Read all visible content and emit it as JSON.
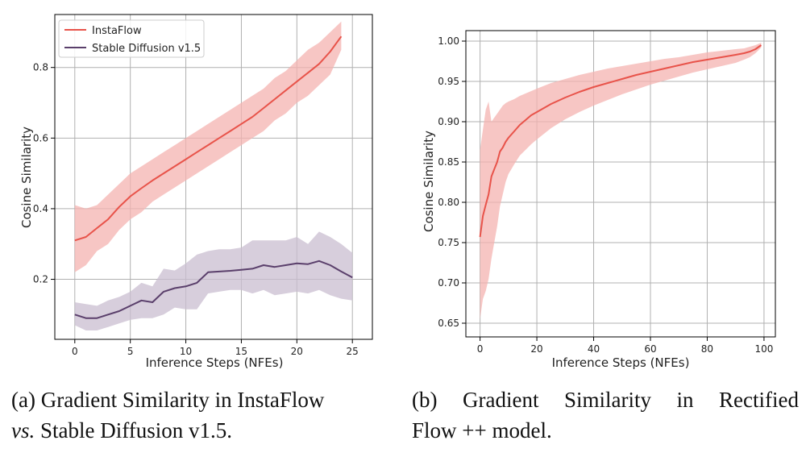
{
  "colors": {
    "instaflow": "#e8534a",
    "instaflow_band": "#f4b3b0",
    "sd": "#5a3f6b",
    "sd_band": "#c9bdd0",
    "grid": "#b0b0b0",
    "axis": "#000000"
  },
  "chart_data": [
    {
      "type": "line",
      "xlabel": "Inference Steps (NFEs)",
      "ylabel": "Cosine Similarity",
      "xlim": [
        -1.8,
        26.8
      ],
      "ylim": [
        0.03,
        0.95
      ],
      "xticks": [
        0,
        5,
        10,
        15,
        20,
        25
      ],
      "yticks": [
        0.2,
        0.4,
        0.6,
        0.8
      ],
      "ytick_labels": [
        "0.2",
        "0.4",
        "0.6",
        "0.8"
      ],
      "grid": true,
      "legend": "top-left",
      "series": [
        {
          "name": "InstaFlow",
          "color": "#e8534a",
          "x": [
            0,
            1,
            2,
            3,
            4,
            5,
            6,
            7,
            8,
            9,
            10,
            11,
            12,
            13,
            14,
            15,
            16,
            17,
            18,
            19,
            20,
            21,
            22,
            23,
            24
          ],
          "y": [
            0.31,
            0.32,
            0.345,
            0.37,
            0.405,
            0.435,
            0.458,
            0.48,
            0.5,
            0.52,
            0.54,
            0.56,
            0.58,
            0.6,
            0.62,
            0.64,
            0.66,
            0.685,
            0.71,
            0.735,
            0.76,
            0.785,
            0.81,
            0.845,
            0.888
          ],
          "lower": [
            0.22,
            0.24,
            0.28,
            0.3,
            0.34,
            0.37,
            0.39,
            0.42,
            0.44,
            0.46,
            0.48,
            0.5,
            0.52,
            0.54,
            0.56,
            0.58,
            0.6,
            0.62,
            0.65,
            0.67,
            0.7,
            0.72,
            0.75,
            0.78,
            0.85
          ],
          "upper": [
            0.41,
            0.4,
            0.41,
            0.44,
            0.47,
            0.5,
            0.52,
            0.54,
            0.56,
            0.58,
            0.6,
            0.62,
            0.64,
            0.66,
            0.68,
            0.7,
            0.72,
            0.74,
            0.77,
            0.79,
            0.82,
            0.85,
            0.87,
            0.9,
            0.93
          ]
        },
        {
          "name": "Stable Diffusion v1.5",
          "color": "#5a3f6b",
          "x": [
            0,
            1,
            2,
            3,
            4,
            5,
            6,
            7,
            8,
            9,
            10,
            11,
            12,
            13,
            14,
            15,
            16,
            17,
            18,
            19,
            20,
            21,
            22,
            23,
            24,
            25
          ],
          "y": [
            0.1,
            0.09,
            0.09,
            0.1,
            0.11,
            0.125,
            0.14,
            0.135,
            0.165,
            0.175,
            0.18,
            0.19,
            0.22,
            0.222,
            0.224,
            0.227,
            0.23,
            0.24,
            0.235,
            0.24,
            0.245,
            0.243,
            0.252,
            0.24,
            0.222,
            0.205
          ],
          "lower": [
            0.07,
            0.055,
            0.055,
            0.065,
            0.075,
            0.085,
            0.09,
            0.09,
            0.1,
            0.12,
            0.115,
            0.115,
            0.16,
            0.165,
            0.17,
            0.17,
            0.16,
            0.17,
            0.155,
            0.16,
            0.165,
            0.16,
            0.17,
            0.155,
            0.145,
            0.14
          ],
          "upper": [
            0.135,
            0.13,
            0.125,
            0.14,
            0.15,
            0.165,
            0.19,
            0.18,
            0.23,
            0.225,
            0.245,
            0.27,
            0.28,
            0.285,
            0.285,
            0.29,
            0.31,
            0.31,
            0.31,
            0.31,
            0.32,
            0.3,
            0.335,
            0.32,
            0.3,
            0.275
          ]
        }
      ]
    },
    {
      "type": "line",
      "xlabel": "Inference Steps (NFEs)",
      "ylabel": "Cosine Similarity",
      "xlim": [
        -5,
        104
      ],
      "ylim": [
        0.633,
        1.013
      ],
      "xticks": [
        0,
        20,
        40,
        60,
        80,
        100
      ],
      "yticks": [
        0.65,
        0.7,
        0.75,
        0.8,
        0.85,
        0.9,
        0.95,
        1.0
      ],
      "ytick_labels": [
        "0.65",
        "0.70",
        "0.75",
        "0.80",
        "0.85",
        "0.90",
        "0.95",
        "1.00"
      ],
      "grid": true,
      "series": [
        {
          "color": "#e8534a",
          "x": [
            0,
            1,
            2,
            3,
            4,
            5,
            6,
            7,
            8,
            9,
            10,
            12,
            14,
            16,
            18,
            20,
            25,
            30,
            35,
            40,
            45,
            50,
            55,
            60,
            65,
            70,
            75,
            80,
            85,
            90,
            93,
            95,
            97,
            99
          ],
          "y": [
            0.757,
            0.783,
            0.797,
            0.81,
            0.832,
            0.841,
            0.85,
            0.863,
            0.868,
            0.875,
            0.88,
            0.888,
            0.896,
            0.902,
            0.908,
            0.912,
            0.922,
            0.93,
            0.937,
            0.943,
            0.948,
            0.953,
            0.958,
            0.962,
            0.966,
            0.97,
            0.974,
            0.977,
            0.98,
            0.983,
            0.985,
            0.987,
            0.99,
            0.995
          ],
          "lower": [
            0.655,
            0.68,
            0.69,
            0.705,
            0.73,
            0.75,
            0.77,
            0.795,
            0.81,
            0.825,
            0.835,
            0.847,
            0.858,
            0.865,
            0.872,
            0.878,
            0.892,
            0.903,
            0.912,
            0.92,
            0.927,
            0.934,
            0.94,
            0.946,
            0.951,
            0.956,
            0.961,
            0.965,
            0.969,
            0.973,
            0.977,
            0.98,
            0.985,
            0.992
          ],
          "upper": [
            0.865,
            0.89,
            0.915,
            0.925,
            0.9,
            0.905,
            0.91,
            0.915,
            0.92,
            0.923,
            0.925,
            0.928,
            0.932,
            0.935,
            0.938,
            0.941,
            0.948,
            0.953,
            0.958,
            0.962,
            0.966,
            0.969,
            0.972,
            0.975,
            0.978,
            0.98,
            0.983,
            0.986,
            0.988,
            0.99,
            0.991,
            0.993,
            0.995,
            0.998
          ]
        }
      ]
    }
  ],
  "captions": {
    "a_line1": "(a) Gradient Similarity in InstaFlow",
    "a_vs": "vs.",
    "a_line2_rest": " Stable Diffusion v1.5.",
    "b_line1_words": [
      "(b)",
      "Gradient",
      "Similarity",
      "in",
      "Rectified"
    ],
    "b_line2": "Flow ++ model."
  }
}
